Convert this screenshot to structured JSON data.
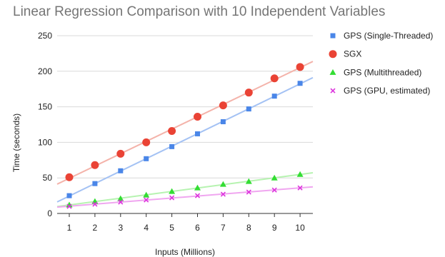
{
  "chart_data": {
    "type": "scatter",
    "title": "Linear Regression Comparison with 10 Independent Variables",
    "xlabel": "Inputs (Millions)",
    "ylabel": "Time (seconds)",
    "x": [
      1,
      2,
      3,
      4,
      5,
      6,
      7,
      8,
      9,
      10
    ],
    "ylim": [
      0,
      250
    ],
    "yticks": [
      0,
      50,
      100,
      150,
      200,
      250
    ],
    "grid": true,
    "trendlines": true,
    "legend_position": "right",
    "series": [
      {
        "name": "GPS (Single-Threaded)",
        "marker": "square",
        "color": "#4a86e8",
        "trend_color": "#a4c2f4",
        "values": [
          25,
          42,
          60,
          77,
          94,
          112,
          129,
          147,
          165,
          183
        ]
      },
      {
        "name": "SGX",
        "marker": "circle",
        "color": "#ea4335",
        "trend_color": "#f4b3aa",
        "values": [
          51,
          68,
          84,
          100,
          116,
          136,
          152,
          170,
          190,
          206
        ]
      },
      {
        "name": "GPS (Multithreaded)",
        "marker": "triangle",
        "color": "#33dd33",
        "trend_color": "#b6f3b0",
        "values": [
          12,
          17,
          21,
          26,
          31,
          36,
          41,
          45,
          50,
          55
        ]
      },
      {
        "name": "GPS (GPU, estimated)",
        "marker": "x",
        "color": "#dd33dd",
        "trend_color": "#f0a6f0",
        "values": [
          10,
          13,
          16,
          19,
          22,
          25,
          27,
          30,
          33,
          36
        ]
      }
    ]
  }
}
